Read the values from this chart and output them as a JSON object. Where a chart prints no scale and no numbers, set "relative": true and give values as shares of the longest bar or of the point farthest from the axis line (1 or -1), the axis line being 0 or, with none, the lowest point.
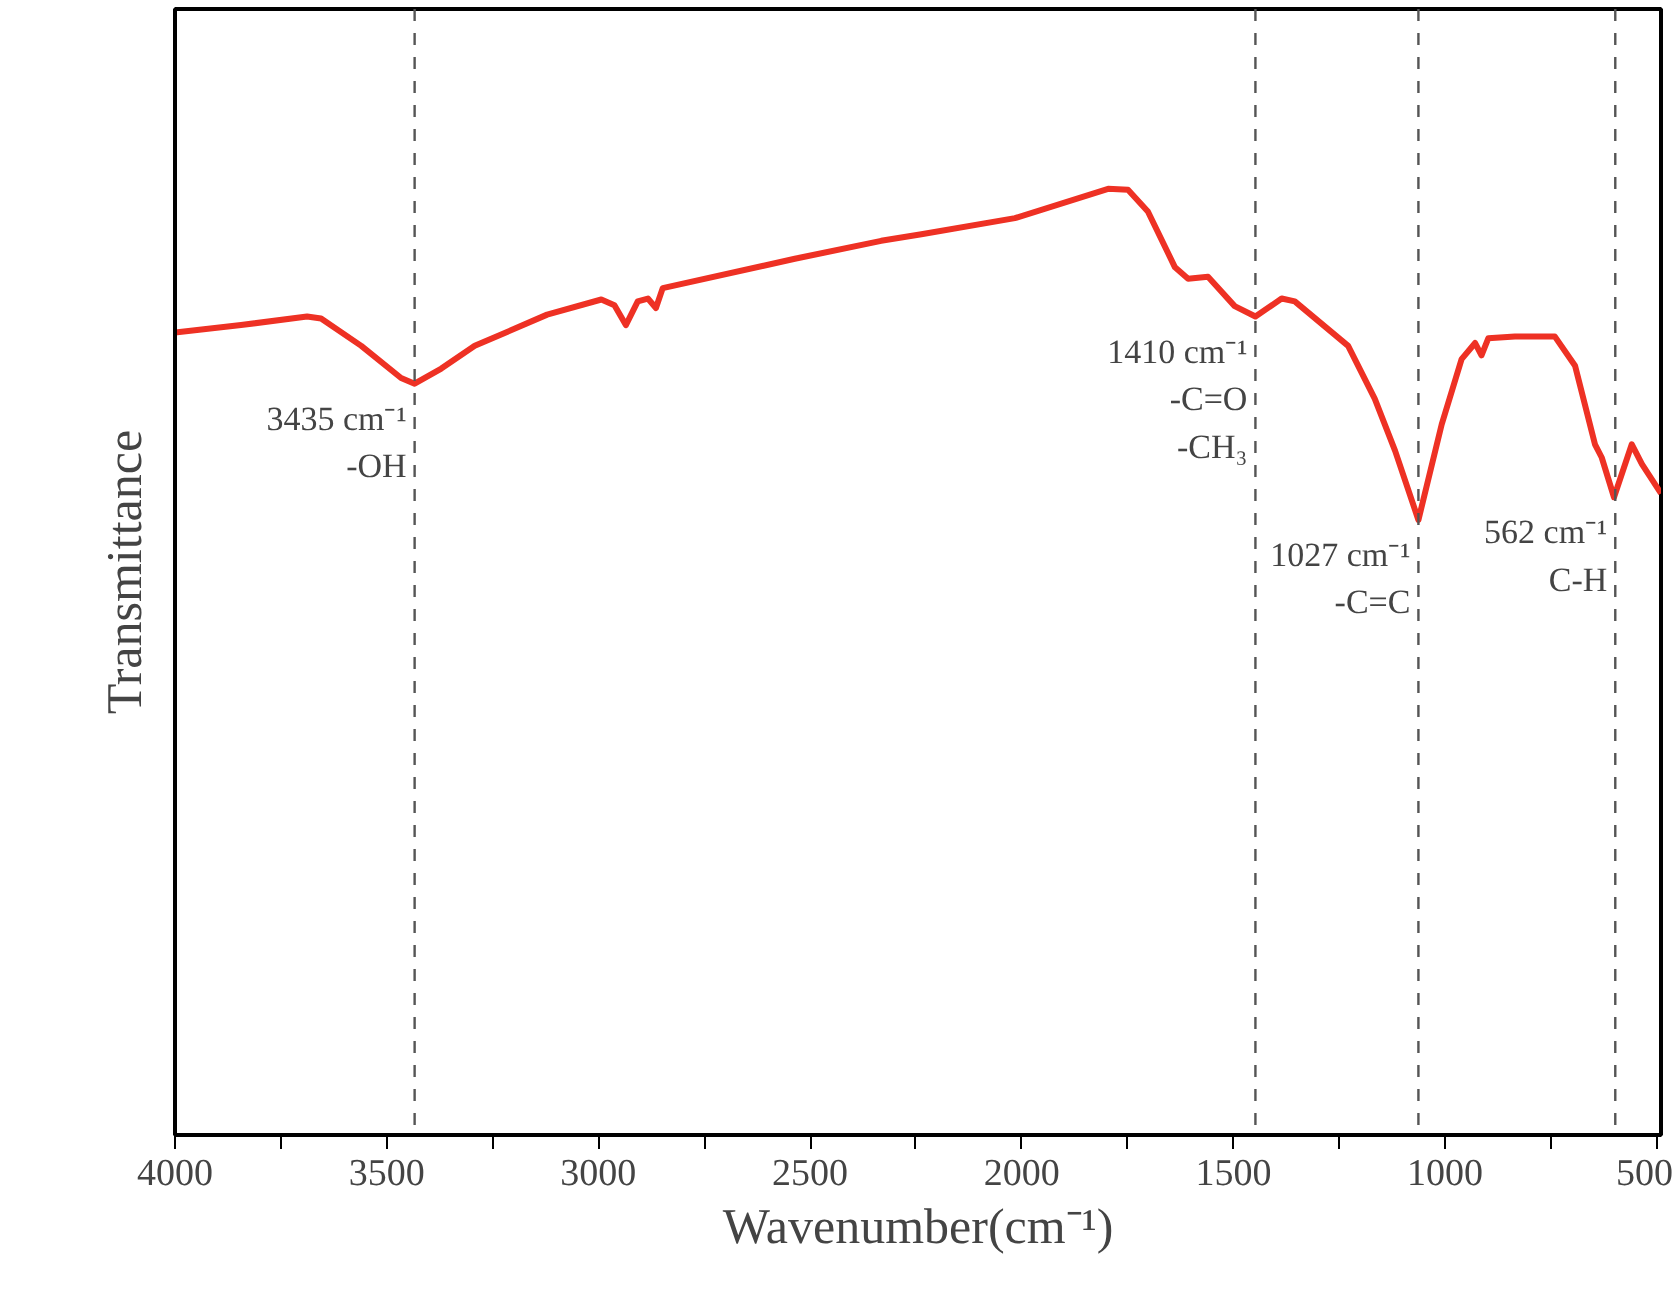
{
  "chart_data": {
    "type": "line",
    "relative": true,
    "xlabel": "Wavenumber(cm⁻¹)",
    "ylabel": "Transmittance",
    "xlim": [
      4000,
      490
    ],
    "xticks": [
      4000,
      {
        "value": 3750,
        "label": null
      },
      3500,
      {
        "value": 3250,
        "label": null
      },
      3000,
      {
        "value": 2750,
        "label": null
      },
      2500,
      {
        "value": 2250,
        "label": null
      },
      2000,
      {
        "value": 1750,
        "label": null
      },
      1500,
      {
        "value": 1250,
        "label": null
      },
      1000,
      {
        "value": 750,
        "label": null
      },
      500
    ],
    "grid": false,
    "line_style": "solid",
    "marker": "none",
    "x": [
      4000,
      3844,
      3688,
      3655,
      3560,
      3466,
      3434,
      3371,
      3292,
      3121,
      2993,
      2962,
      2935,
      2907,
      2883,
      2864,
      2848,
      2536,
      2332,
      2237,
      2016,
      1796,
      1749,
      1702,
      1638,
      1607,
      1560,
      1497,
      1448,
      1386,
      1355,
      1229,
      1166,
      1118,
      1063,
      1008,
      961,
      929,
      914,
      898,
      835,
      741,
      693,
      646,
      630,
      601,
      559,
      535,
      490
    ],
    "series": [
      {
        "color": "#ee3124",
        "values": [
          0.848,
          0.856,
          0.865,
          0.863,
          0.834,
          0.8,
          0.794,
          0.81,
          0.834,
          0.867,
          0.883,
          0.877,
          0.856,
          0.881,
          0.884,
          0.874,
          0.895,
          0.926,
          0.945,
          0.952,
          0.969,
          1.0,
          0.999,
          0.976,
          0.917,
          0.905,
          0.907,
          0.876,
          0.865,
          0.884,
          0.881,
          0.834,
          0.778,
          0.723,
          0.65,
          0.751,
          0.82,
          0.837,
          0.824,
          0.842,
          0.844,
          0.844,
          0.813,
          0.73,
          0.716,
          0.674,
          0.73,
          0.709,
          0.678
        ]
      }
    ],
    "ref_lines": [
      {
        "axis": "x",
        "value": 3434,
        "color": "#555555",
        "line_style": "dashed"
      },
      {
        "axis": "x",
        "value": 1448,
        "color": "#555555",
        "line_style": "dashed"
      },
      {
        "axis": "x",
        "value": 1063,
        "color": "#555555",
        "line_style": "dashed"
      },
      {
        "axis": "x",
        "value": 598,
        "color": "#555555",
        "line_style": "dashed"
      }
    ],
    "annotations": [
      {
        "text": "3435 cm⁻¹\n-OH",
        "x": 3434,
        "y": 0.794
      },
      {
        "text": "1410 cm⁻¹\n-C=O\n-CH₃",
        "x": 1448,
        "y": 0.865
      },
      {
        "text": "1027 cm⁻¹\n-C=C",
        "x": 1063,
        "y": 0.65
      },
      {
        "text": "562 cm⁻¹\nC-H",
        "x": 598,
        "y": 0.674
      }
    ]
  }
}
